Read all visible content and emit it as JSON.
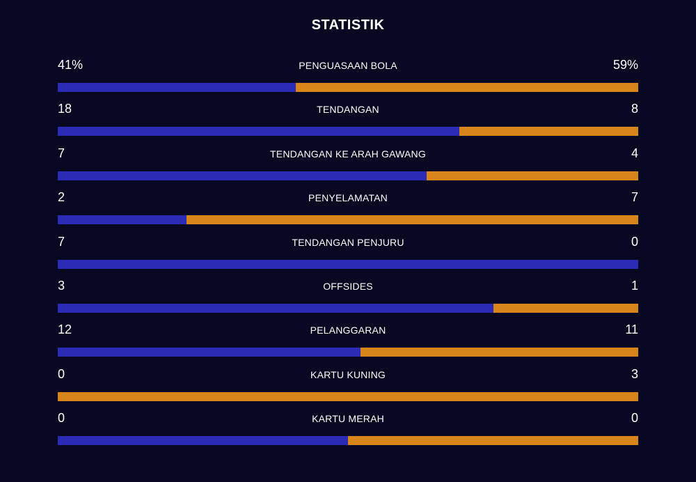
{
  "header": {
    "title": "STATISTIK"
  },
  "colors": {
    "home": "#2b2bb5",
    "away": "#d8861a",
    "background": "#080822"
  },
  "stats": [
    {
      "label": "PENGUASAAN BOLA",
      "home": "41%",
      "away": "59%",
      "home_share": 0.41
    },
    {
      "label": "TENDANGAN",
      "home": "18",
      "away": "8",
      "home_share": 0.692
    },
    {
      "label": "TENDANGAN KE ARAH GAWANG",
      "home": "7",
      "away": "4",
      "home_share": 0.636
    },
    {
      "label": "PENYELAMATAN",
      "home": "2",
      "away": "7",
      "home_share": 0.222
    },
    {
      "label": "TENDANGAN PENJURU",
      "home": "7",
      "away": "0",
      "home_share": 1.0
    },
    {
      "label": "OFFSIDES",
      "home": "3",
      "away": "1",
      "home_share": 0.75
    },
    {
      "label": "PELANGGARAN",
      "home": "12",
      "away": "11",
      "home_share": 0.522
    },
    {
      "label": "KARTU KUNING",
      "home": "0",
      "away": "3",
      "home_share": 0.0
    },
    {
      "label": "KARTU MERAH",
      "home": "0",
      "away": "0",
      "home_share": 0.5
    }
  ]
}
